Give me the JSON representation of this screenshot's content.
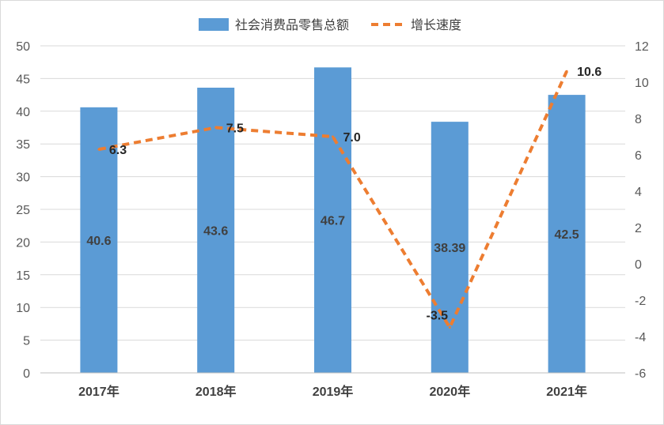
{
  "chart_data": {
    "type": "bar",
    "categories": [
      "2017年",
      "2018年",
      "2019年",
      "2020年",
      "2021年"
    ],
    "series": [
      {
        "name": "社会消费品零售总额",
        "type": "bar",
        "axis": "left",
        "values": [
          40.6,
          43.6,
          46.7,
          38.39,
          42.5
        ],
        "labels": [
          "40.6",
          "43.6",
          "46.7",
          "38.39",
          "42.5"
        ]
      },
      {
        "name": "增长速度",
        "type": "line",
        "axis": "right",
        "style": "dashed",
        "values": [
          6.3,
          7.5,
          7.0,
          -3.5,
          10.6
        ],
        "labels": [
          "6.3",
          "7.5",
          "7.0",
          "-3.5",
          "10.6"
        ]
      }
    ],
    "y_left": {
      "min": 0,
      "max": 50,
      "step": 5,
      "ticks": [
        "0",
        "5",
        "10",
        "15",
        "20",
        "25",
        "30",
        "35",
        "40",
        "45",
        "50"
      ]
    },
    "y_right": {
      "min": -6,
      "max": 12,
      "step": 2,
      "ticks": [
        "-6",
        "-4",
        "-2",
        "0",
        "2",
        "4",
        "6",
        "8",
        "10",
        "12"
      ]
    },
    "legend": "top-center",
    "grid": true,
    "colors": {
      "bar": "#5b9bd5",
      "line": "#ed7d31",
      "grid": "#d9d9d9",
      "axis": "#bfbfbf"
    }
  }
}
